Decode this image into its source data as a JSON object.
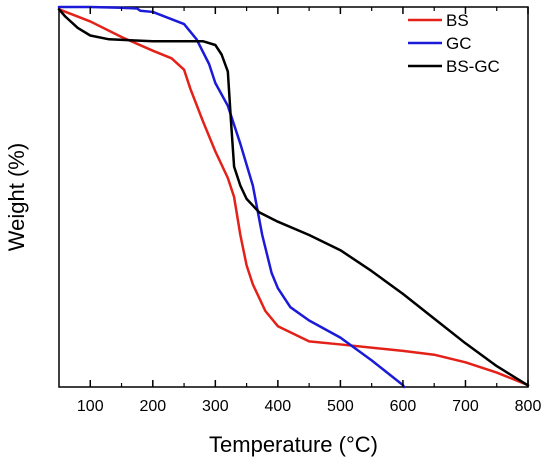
{
  "chart_data": {
    "type": "line",
    "title": "",
    "xlabel": "Temperature (°C)",
    "ylabel": "Weight (%)",
    "xlim": [
      50,
      800
    ],
    "ylim": [
      0,
      100
    ],
    "x_ticks": [
      100,
      200,
      300,
      400,
      500,
      600,
      700,
      800
    ],
    "x_tick_labels": [
      "100",
      "200",
      "300",
      "400",
      "500",
      "600",
      "700",
      "800"
    ],
    "y_ticks_labeled": false,
    "grid": false,
    "legend_position": "top-right",
    "series": [
      {
        "name": "BS",
        "color": "#e32119",
        "points": [
          [
            50,
            99.4
          ],
          [
            100,
            96.2
          ],
          [
            150,
            92.1
          ],
          [
            200,
            88.5
          ],
          [
            230,
            86.5
          ],
          [
            250,
            83.5
          ],
          [
            260,
            78.5
          ],
          [
            280,
            70
          ],
          [
            300,
            62
          ],
          [
            320,
            55
          ],
          [
            330,
            50
          ],
          [
            340,
            40
          ],
          [
            350,
            32
          ],
          [
            360,
            27
          ],
          [
            380,
            20
          ],
          [
            400,
            16
          ],
          [
            450,
            12
          ],
          [
            500,
            11.2
          ],
          [
            600,
            9.5
          ],
          [
            650,
            8.5
          ],
          [
            700,
            6.5
          ],
          [
            750,
            3.8
          ],
          [
            800,
            0.5
          ]
        ]
      },
      {
        "name": "GC",
        "color": "#1a1ad8",
        "points": [
          [
            50,
            100
          ],
          [
            100,
            100
          ],
          [
            150,
            99.8
          ],
          [
            175,
            99.6
          ],
          [
            180,
            99
          ],
          [
            200,
            98.7
          ],
          [
            250,
            95.5
          ],
          [
            270,
            91.5
          ],
          [
            290,
            85
          ],
          [
            300,
            80
          ],
          [
            320,
            74
          ],
          [
            340,
            64
          ],
          [
            360,
            53
          ],
          [
            375,
            40
          ],
          [
            390,
            30
          ],
          [
            400,
            26
          ],
          [
            420,
            21
          ],
          [
            450,
            17.5
          ],
          [
            500,
            13
          ],
          [
            550,
            7
          ],
          [
            600,
            0.5
          ],
          [
            602,
            0
          ]
        ]
      },
      {
        "name": "BS-GC",
        "color": "#000000",
        "points": [
          [
            50,
            99.4
          ],
          [
            60,
            97.5
          ],
          [
            80,
            94.5
          ],
          [
            100,
            92.5
          ],
          [
            130,
            91.5
          ],
          [
            200,
            91
          ],
          [
            250,
            91
          ],
          [
            280,
            91
          ],
          [
            300,
            90
          ],
          [
            310,
            87.5
          ],
          [
            320,
            83
          ],
          [
            325,
            70
          ],
          [
            330,
            58
          ],
          [
            340,
            53
          ],
          [
            350,
            49.5
          ],
          [
            370,
            46
          ],
          [
            400,
            43.5
          ],
          [
            450,
            40
          ],
          [
            500,
            36
          ],
          [
            550,
            30.5
          ],
          [
            600,
            24.5
          ],
          [
            650,
            18
          ],
          [
            700,
            11.5
          ],
          [
            750,
            5.5
          ],
          [
            800,
            0.4
          ]
        ]
      }
    ]
  }
}
